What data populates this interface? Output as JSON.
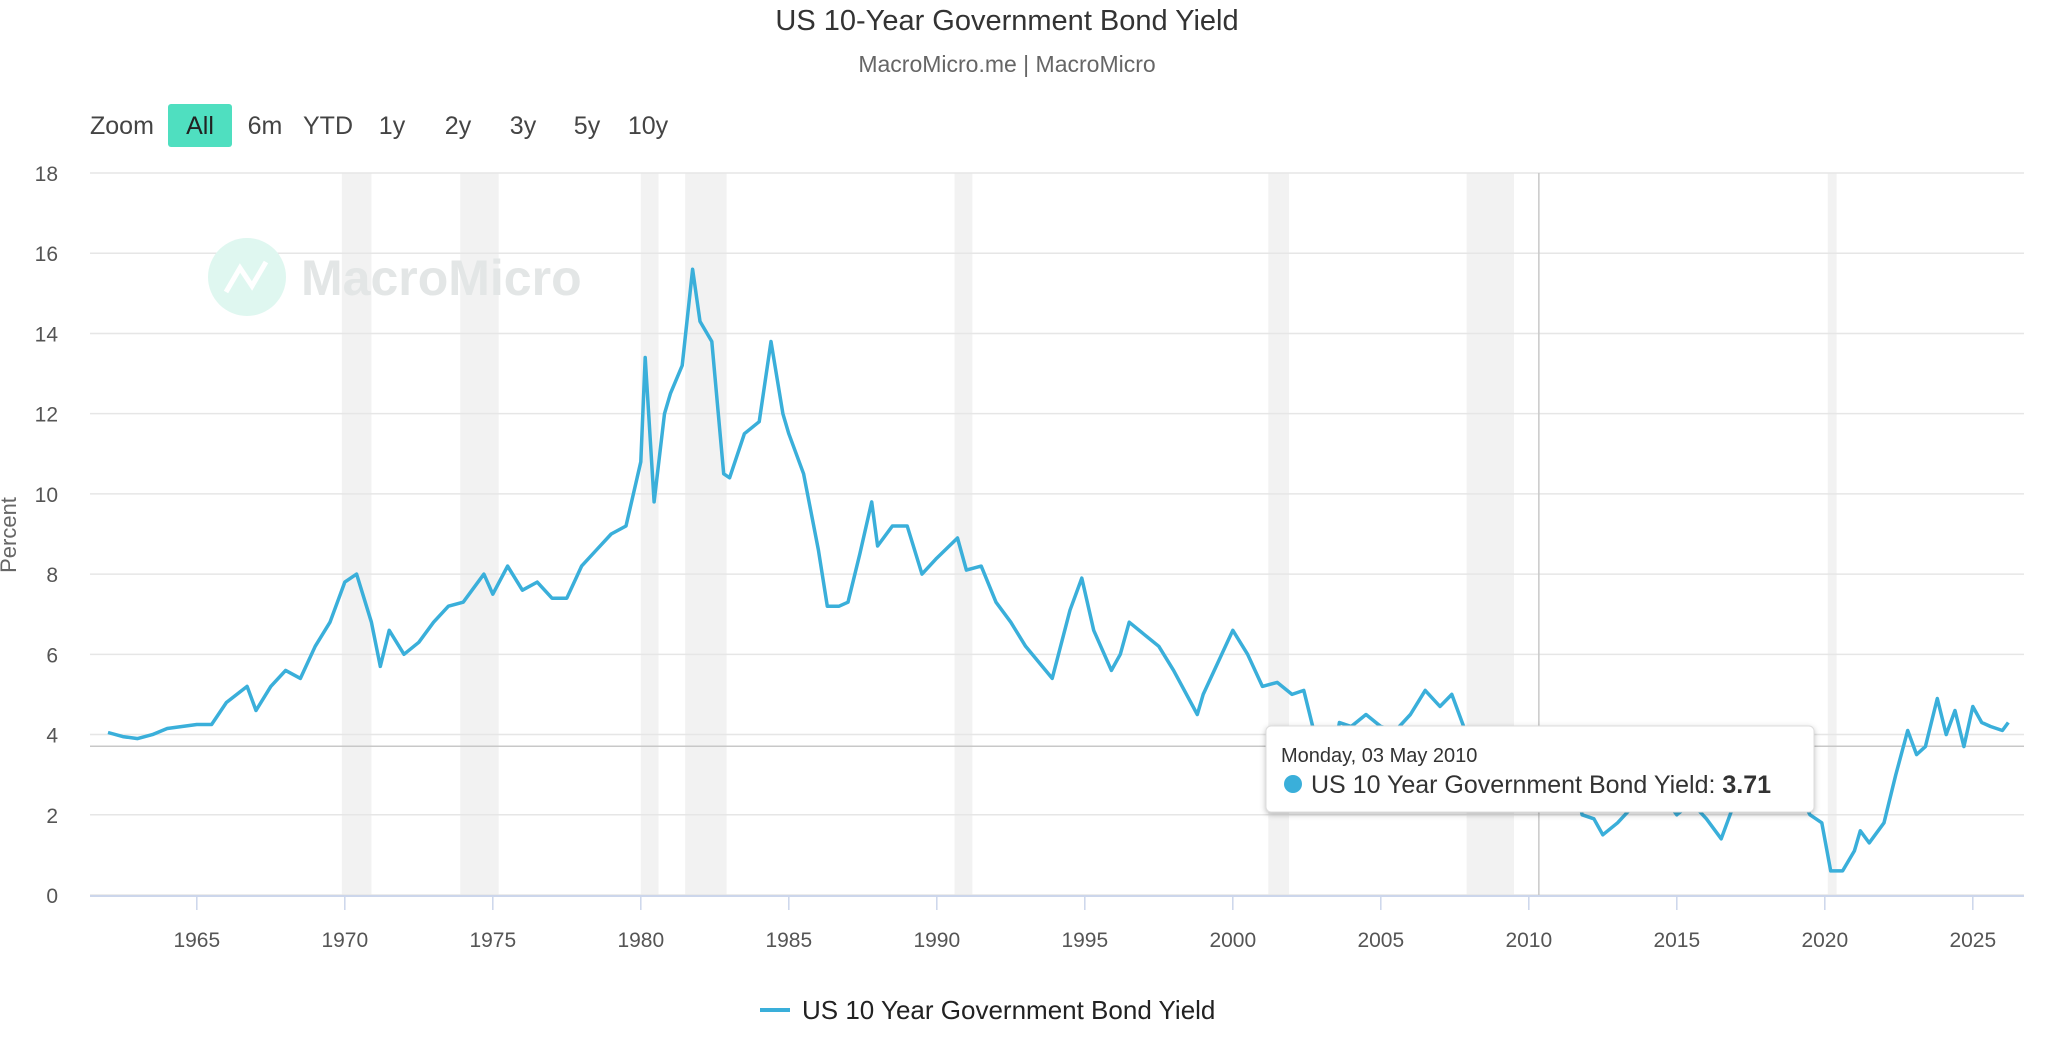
{
  "colors": {
    "series": "#3aafda",
    "accent_button": "#4fdfc0",
    "recession_band": "#f2f2f2",
    "grid": "#e6e6e6",
    "watermark": "#e3e6e6"
  },
  "watermark": {
    "text": "MacroMicro",
    "icon": "macromicro-logo-icon"
  },
  "zoom": {
    "label": "Zoom",
    "buttons": [
      "All",
      "6m",
      "YTD",
      "1y",
      "2y",
      "3y",
      "5y",
      "10y"
    ],
    "selected": "All"
  },
  "tooltip": {
    "date": "Monday, 03 May 2010",
    "series": "US 10 Year Government Bond Yield",
    "value": "3.71",
    "x": 2010.34,
    "y": 3.71
  },
  "chart_data": {
    "type": "line",
    "title": "US 10-Year Government Bond Yield",
    "subtitle": "MacroMicro.me | MacroMicro",
    "xlabel": "",
    "ylabel": "Percent",
    "xlim": [
      1962,
      2026.3
    ],
    "ylim": [
      0,
      18
    ],
    "yticks": [
      0,
      2,
      4,
      6,
      8,
      10,
      12,
      14,
      16,
      18
    ],
    "xticks": [
      1965,
      1970,
      1975,
      1980,
      1985,
      1990,
      1995,
      2000,
      2005,
      2010,
      2015,
      2020,
      2025
    ],
    "grid": true,
    "legend": "bottom",
    "recessions": [
      [
        1969.9,
        1970.9
      ],
      [
        1973.9,
        1975.2
      ],
      [
        1980.0,
        1980.6
      ],
      [
        1981.5,
        1982.9
      ],
      [
        1990.6,
        1991.2
      ],
      [
        2001.2,
        2001.9
      ],
      [
        2007.9,
        2009.5
      ],
      [
        2020.1,
        2020.4
      ]
    ],
    "series": [
      {
        "name": "US 10 Year Government Bond Yield",
        "x": [
          1962,
          1962.5,
          1963,
          1963.5,
          1964,
          1964.5,
          1965,
          1965.5,
          1966,
          1966.7,
          1967,
          1967.5,
          1968,
          1968.5,
          1969,
          1969.5,
          1970,
          1970.4,
          1970.9,
          1971.2,
          1971.5,
          1972,
          1972.5,
          1973,
          1973.5,
          1974,
          1974.7,
          1975,
          1975.5,
          1976,
          1976.5,
          1977,
          1977.5,
          1978,
          1978.5,
          1979,
          1979.5,
          1980,
          1980.15,
          1980.45,
          1980.8,
          1981,
          1981.4,
          1981.75,
          1982,
          1982.4,
          1982.8,
          1983,
          1983.5,
          1984,
          1984.4,
          1984.8,
          1985,
          1985.5,
          1986,
          1986.3,
          1986.7,
          1987,
          1987.4,
          1987.8,
          1988,
          1988.5,
          1989,
          1989.5,
          1990,
          1990.7,
          1991,
          1991.5,
          1992,
          1992.5,
          1993,
          1993.9,
          1994.5,
          1994.9,
          1995.3,
          1995.9,
          1996.2,
          1996.5,
          1997,
          1997.5,
          1998,
          1998.8,
          1999,
          1999.5,
          2000,
          2000.5,
          2001,
          2001.5,
          2002,
          2002.4,
          2002.8,
          2003.4,
          2003.6,
          2004,
          2004.5,
          2005,
          2005.5,
          2006,
          2006.5,
          2007,
          2007.4,
          2008,
          2008.5,
          2008.95,
          2009.2,
          2009.5,
          2010,
          2010.34,
          2010.8,
          2011.1,
          2011.5,
          2011.8,
          2012.2,
          2012.5,
          2013,
          2013.5,
          2013.95,
          2014.5,
          2015,
          2015.5,
          2016,
          2016.5,
          2017,
          2017.5,
          2018,
          2018.8,
          2019,
          2019.5,
          2019.9,
          2020.2,
          2020.6,
          2021,
          2021.2,
          2021.5,
          2022,
          2022.4,
          2022.8,
          2023.1,
          2023.4,
          2023.8,
          2024.1,
          2024.4,
          2024.7,
          2025,
          2025.3,
          2025.6,
          2026,
          2026.2
        ],
        "y": [
          4.05,
          3.95,
          3.9,
          4.0,
          4.15,
          4.2,
          4.25,
          4.25,
          4.8,
          5.2,
          4.6,
          5.2,
          5.6,
          5.4,
          6.2,
          6.8,
          7.8,
          8.0,
          6.8,
          5.7,
          6.6,
          6.0,
          6.3,
          6.8,
          7.2,
          7.3,
          8.0,
          7.5,
          8.2,
          7.6,
          7.8,
          7.4,
          7.4,
          8.2,
          8.6,
          9.0,
          9.2,
          10.8,
          13.4,
          9.8,
          12.0,
          12.5,
          13.2,
          15.6,
          14.3,
          13.8,
          10.5,
          10.4,
          11.5,
          11.8,
          13.8,
          12.0,
          11.5,
          10.5,
          8.6,
          7.2,
          7.2,
          7.3,
          8.5,
          9.8,
          8.7,
          9.2,
          9.2,
          8.0,
          8.4,
          8.9,
          8.1,
          8.2,
          7.3,
          6.8,
          6.2,
          5.4,
          7.1,
          7.9,
          6.6,
          5.6,
          6.0,
          6.8,
          6.5,
          6.2,
          5.6,
          4.5,
          5.0,
          5.8,
          6.6,
          6.0,
          5.2,
          5.3,
          5.0,
          5.1,
          3.9,
          3.4,
          4.3,
          4.2,
          4.5,
          4.2,
          4.1,
          4.5,
          5.1,
          4.7,
          5.0,
          3.8,
          4.0,
          2.3,
          3.0,
          3.6,
          3.7,
          3.71,
          2.6,
          3.4,
          3.1,
          2.0,
          1.9,
          1.5,
          1.8,
          2.2,
          2.9,
          2.5,
          2.0,
          2.3,
          1.9,
          1.4,
          2.4,
          2.3,
          2.5,
          3.2,
          2.7,
          2.0,
          1.8,
          0.6,
          0.6,
          1.1,
          1.6,
          1.3,
          1.8,
          3.0,
          4.1,
          3.5,
          3.7,
          4.9,
          4.0,
          4.6,
          3.7,
          4.7,
          4.3,
          4.2,
          4.1,
          4.3
        ]
      }
    ]
  }
}
